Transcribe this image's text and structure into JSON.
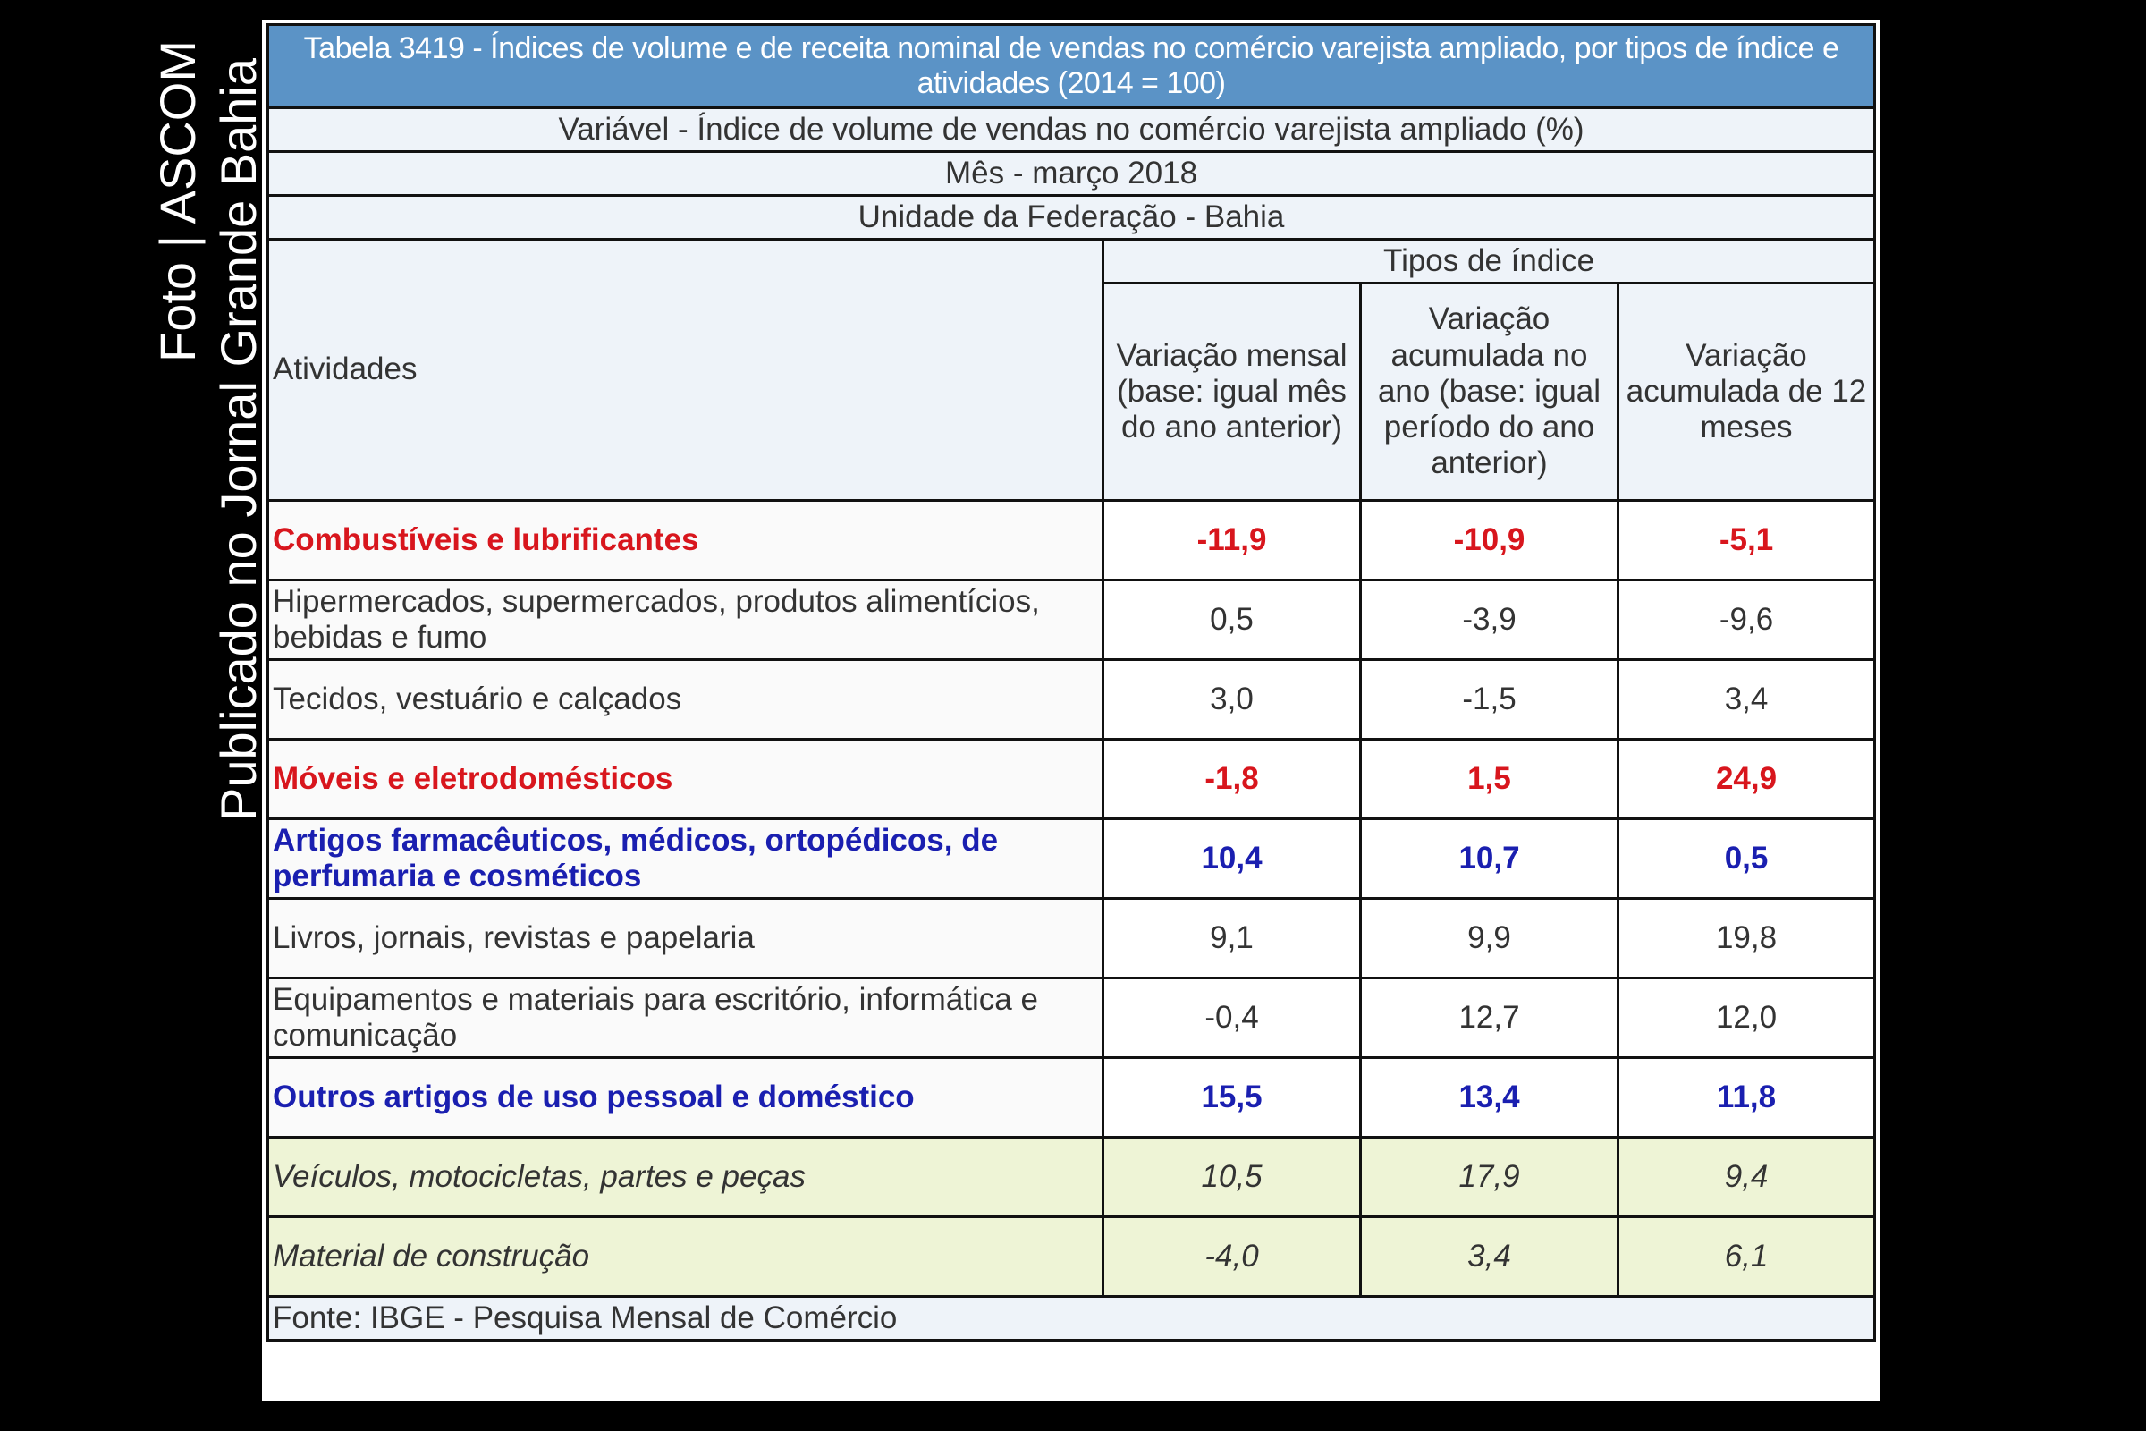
{
  "credits": {
    "photo": "Foto | ASCOM",
    "published": "Publicado no Jornal Grande Bahia"
  },
  "table": {
    "title": "Tabela 3419 - Índices de volume e de receita nominal de vendas no comércio varejista ampliado, por tipos de índice e atividades (2014 = 100)",
    "variable": "Variável - Índice de volume de vendas no comércio varejista ampliado (%)",
    "month": "Mês - março 2018",
    "region": "Unidade da Federação - Bahia",
    "col_activities": "Atividades",
    "col_group": "Tipos de índice",
    "columns": [
      "Variação mensal (base: igual mês do ano anterior)",
      "Variação acumulada no ano (base: igual período do ano anterior)",
      "Variação acumulada de 12 meses"
    ],
    "rows": [
      {
        "activity": "Combustíveis e lubrificantes",
        "values": [
          "-11,9",
          "-10,9",
          "-5,1"
        ],
        "style": "red"
      },
      {
        "activity": "Hipermercados, supermercados, produtos alimentícios, bebidas e fumo",
        "values": [
          "0,5",
          "-3,9",
          "-9,6"
        ],
        "style": "normal"
      },
      {
        "activity": "Tecidos, vestuário e calçados",
        "values": [
          "3,0",
          "-1,5",
          "3,4"
        ],
        "style": "normal"
      },
      {
        "activity": "Móveis e eletrodomésticos",
        "values": [
          "-1,8",
          "1,5",
          "24,9"
        ],
        "style": "red"
      },
      {
        "activity": "Artigos farmacêuticos, médicos, ortopédicos, de perfumaria e cosméticos",
        "values": [
          "10,4",
          "10,7",
          "0,5"
        ],
        "style": "blue"
      },
      {
        "activity": "Livros, jornais, revistas e papelaria",
        "values": [
          "9,1",
          "9,9",
          "19,8"
        ],
        "style": "normal"
      },
      {
        "activity": "Equipamentos e materiais para escritório, informática e comunicação",
        "values": [
          "-0,4",
          "12,7",
          "12,0"
        ],
        "style": "normal"
      },
      {
        "activity": "Outros artigos de uso pessoal e doméstico",
        "values": [
          "15,5",
          "13,4",
          "11,8"
        ],
        "style": "blue"
      },
      {
        "activity": "Veículos, motocicletas, partes e peças",
        "values": [
          "10,5",
          "17,9",
          "9,4"
        ],
        "style": "green"
      },
      {
        "activity": "Material de construção",
        "values": [
          "-4,0",
          "3,4",
          "6,1"
        ],
        "style": "green"
      }
    ],
    "source": "Fonte: IBGE - Pesquisa Mensal de Comércio"
  },
  "colors": {
    "header": "#5b93c6",
    "red": "#d8161d",
    "blue": "#1a1fb0",
    "green_row": "#eef4d6",
    "background": "#000000"
  }
}
